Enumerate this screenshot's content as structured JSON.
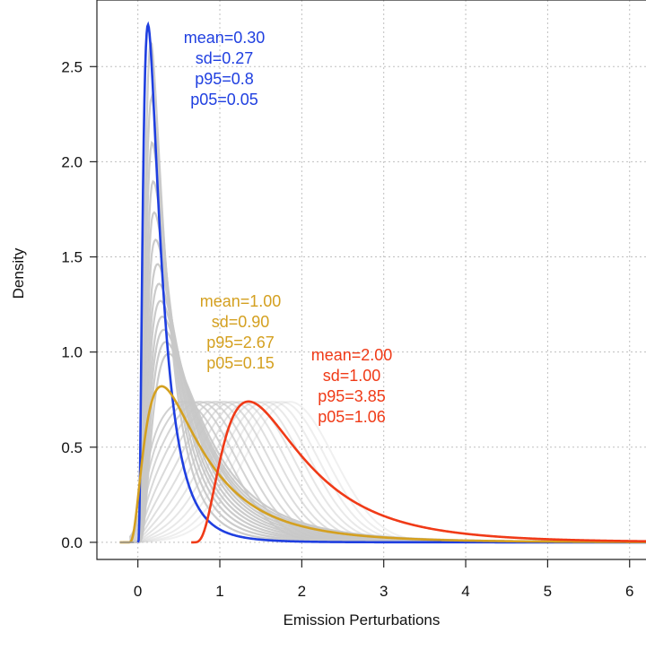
{
  "chart_data": {
    "type": "line",
    "xlabel": "Emission Perturbations",
    "ylabel": "Density",
    "xlim": [
      -0.5,
      6.2
    ],
    "ylim": [
      -0.09,
      2.85
    ],
    "x_ticks": [
      0,
      1,
      2,
      3,
      4,
      5,
      6
    ],
    "y_ticks": [
      0.0,
      0.5,
      1.0,
      1.5,
      2.0,
      2.5
    ],
    "x_tick_labels": [
      "0",
      "1",
      "2",
      "3",
      "4",
      "5",
      "6"
    ],
    "y_tick_labels": [
      "0.0",
      "0.5",
      "1.0",
      "1.5",
      "2.0",
      "2.5"
    ],
    "grid": true,
    "background_series": {
      "color": "#c8c8c8",
      "lognormal_curves": [
        {
          "mean": 0.35,
          "sd": 0.31
        },
        {
          "mean": 0.4,
          "sd": 0.37
        },
        {
          "mean": 0.45,
          "sd": 0.43
        },
        {
          "mean": 0.5,
          "sd": 0.48
        },
        {
          "mean": 0.55,
          "sd": 0.54
        },
        {
          "mean": 0.6,
          "sd": 0.59
        },
        {
          "mean": 0.65,
          "sd": 0.63
        },
        {
          "mean": 0.7,
          "sd": 0.68
        },
        {
          "mean": 0.75,
          "sd": 0.73
        },
        {
          "mean": 0.8,
          "sd": 0.77
        },
        {
          "mean": 0.85,
          "sd": 0.82
        },
        {
          "mean": 0.9,
          "sd": 0.86
        },
        {
          "mean": 0.95,
          "sd": 0.88
        }
      ],
      "normal_curves": [
        {
          "mean": 0.55,
          "sd": 0.54
        },
        {
          "mean": 0.65,
          "sd": 0.54
        },
        {
          "mean": 0.75,
          "sd": 0.54
        },
        {
          "mean": 0.85,
          "sd": 0.54
        },
        {
          "mean": 0.95,
          "sd": 0.54
        },
        {
          "mean": 1.05,
          "sd": 0.54
        },
        {
          "mean": 1.15,
          "sd": 0.54
        },
        {
          "mean": 1.25,
          "sd": 0.54
        },
        {
          "mean": 1.35,
          "sd": 0.54
        },
        {
          "mean": 1.45,
          "sd": 0.54
        },
        {
          "mean": 1.55,
          "sd": 0.54
        },
        {
          "mean": 1.65,
          "sd": 0.54
        },
        {
          "mean": 1.75,
          "sd": 0.54
        },
        {
          "mean": 1.85,
          "sd": 0.54
        }
      ]
    },
    "series": [
      {
        "color": "#1f3fe0",
        "mean": 0.3,
        "sd": 0.27,
        "p95": 0.8,
        "p05": 0.05,
        "peak_density": 2.72
      },
      {
        "color": "#d4a020",
        "mean": 1.0,
        "sd": 0.9,
        "p95": 2.67,
        "p05": 0.15,
        "peak_density": 0.82
      },
      {
        "color": "#f03a17",
        "mean": 2.0,
        "sd": 1.0,
        "p95": 3.85,
        "p05": 1.06,
        "peak_density": 0.74,
        "offset": 0.65
      }
    ],
    "annotations": [
      {
        "color": "#1f3fe0",
        "lines": [
          "mean=0.30",
          "sd=0.27",
          "p95=0.8",
          "p05=0.05"
        ]
      },
      {
        "color": "#d4a020",
        "lines": [
          "mean=1.00",
          "sd=0.90",
          "p95=2.67",
          "p05=0.15"
        ]
      },
      {
        "color": "#f03a17",
        "lines": [
          "mean=2.00",
          "sd=1.00",
          "p95=3.85",
          "p05=1.06"
        ]
      }
    ]
  }
}
